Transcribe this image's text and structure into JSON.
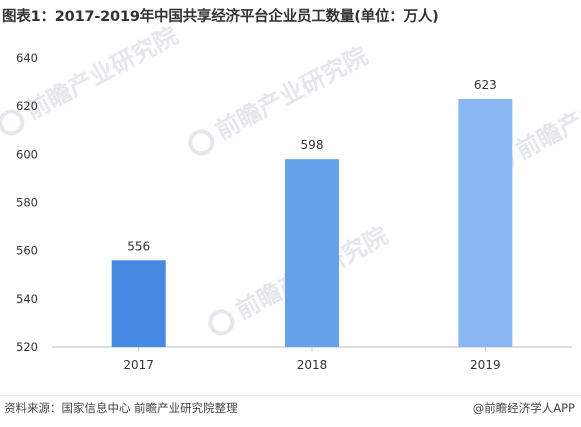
{
  "title": "图表1：2017-2019年中国共享经济平台企业员工数量(单位：万人)",
  "footer": {
    "source": "资料来源：国家信息中心 前瞻产业研究院整理",
    "credit": "@前瞻经济学人APP"
  },
  "watermark_text": "前瞻产业研究院",
  "colors": {
    "bar_2017": "#4589e3",
    "bar_2018": "#65a0ea",
    "bar_2019": "#8ab7f1",
    "axis": "#bfbfbf",
    "tick_text": "#333333"
  },
  "chart_data": {
    "type": "bar",
    "title": "图表1：2017-2019年中国共享经济平台企业员工数量(单位：万人)",
    "categories": [
      "2017",
      "2018",
      "2019"
    ],
    "values": [
      556,
      598,
      623
    ],
    "xlabel": "",
    "ylabel": "",
    "ylim": [
      520,
      640
    ],
    "yticks": [
      520,
      540,
      560,
      580,
      600,
      620,
      640
    ],
    "grid": false,
    "data_labels": true
  }
}
